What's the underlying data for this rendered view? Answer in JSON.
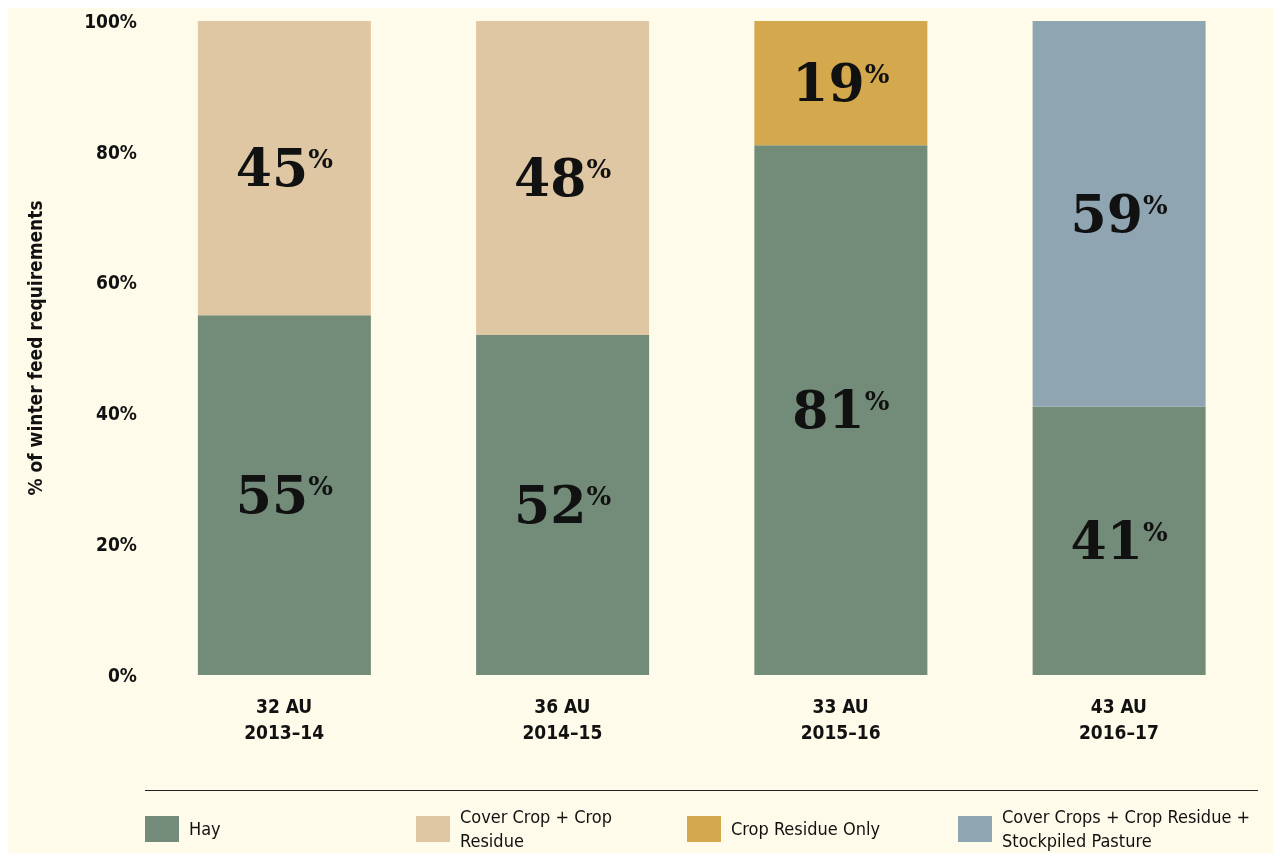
{
  "chart_data": {
    "type": "bar",
    "stacked": true,
    "ylabel": "% of winter feed requirements",
    "categories": [
      "32 AU\n2013–14",
      "36 AU\n2014–15",
      "33 AU\n2015–16",
      "43 AU\n2016–17"
    ],
    "series": [
      {
        "name": "Hay",
        "color": "#738c7a",
        "values": [
          55,
          52,
          81,
          41
        ],
        "value_labels": [
          "55$^{%}$",
          "52$^{%}$",
          "81$^{%}$",
          "41$^{%}$"
        ]
      },
      {
        "name": "Cover Crop + Crop Residue",
        "color": "#dfc7a4",
        "values": [
          45,
          48,
          null,
          null
        ],
        "value_labels": [
          "45$^{%}$",
          "48$^{%}$",
          null,
          null
        ]
      },
      {
        "name": "Crop Residue Only",
        "color": "#d4a84c",
        "values": [
          null,
          null,
          19,
          null
        ],
        "value_labels": [
          null,
          null,
          "19$^{%}$",
          null
        ]
      },
      {
        "name": "Cover Crops + Crop Residue + Stockpiled Pasture",
        "color": "#8fa5b2",
        "values": [
          null,
          null,
          null,
          59
        ],
        "value_labels": [
          null,
          null,
          null,
          "59$^{%}$"
        ]
      }
    ],
    "ylim": [
      0,
      100
    ],
    "yticks": [
      {
        "value": 0,
        "label": "0%"
      },
      {
        "value": 20,
        "label": "20%"
      },
      {
        "value": 40,
        "label": "40%"
      },
      {
        "value": 60,
        "label": "60%"
      },
      {
        "value": 80,
        "label": "80%"
      },
      {
        "value": 100,
        "label": "100%"
      }
    ],
    "grid": false,
    "legend": "bottom"
  }
}
